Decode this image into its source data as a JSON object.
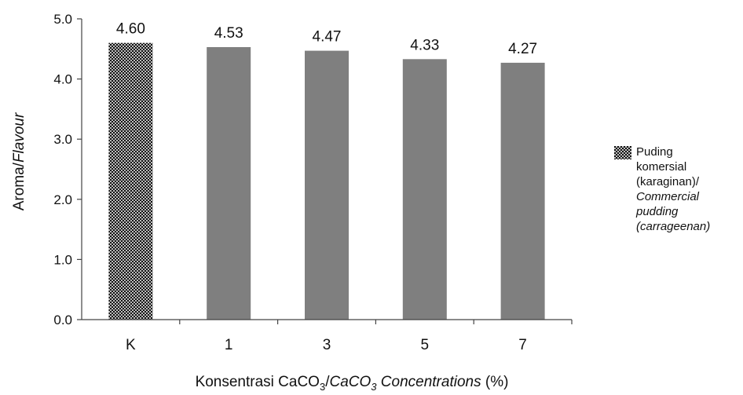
{
  "chart_data": {
    "type": "bar",
    "categories": [
      "K",
      "1",
      "3",
      "5",
      "7"
    ],
    "values": [
      4.6,
      4.53,
      4.47,
      4.33,
      4.27
    ],
    "value_labels": [
      "4.60",
      "4.53",
      "4.47",
      "4.33",
      "4.27"
    ],
    "ylim": [
      0,
      5
    ],
    "y_ticks": [
      "0.0",
      "1.0",
      "2.0",
      "3.0",
      "4.0",
      "5.0"
    ],
    "ylabel": {
      "regular": "Aroma/",
      "italic": "Flavour"
    },
    "xlabel": {
      "prefix": "Konsentrasi  CaCO",
      "sub1": "3",
      "slash": "/",
      "italic": "CaCO",
      "sub2": "3",
      "italic_tail": " Concentrations",
      "suffix": " (%)"
    },
    "grid": false,
    "legend": {
      "placement": "right",
      "lines_regular": [
        "Puding",
        "komersial",
        "(karaginan)/"
      ],
      "lines_italic": [
        "Commercial",
        "pudding",
        "(carrageenan)"
      ]
    },
    "colors": {
      "bar": "#7f7f7f",
      "control_pattern_dark": "#111111",
      "control_pattern_light": "#bdbdbd",
      "axis": "#444444"
    }
  }
}
